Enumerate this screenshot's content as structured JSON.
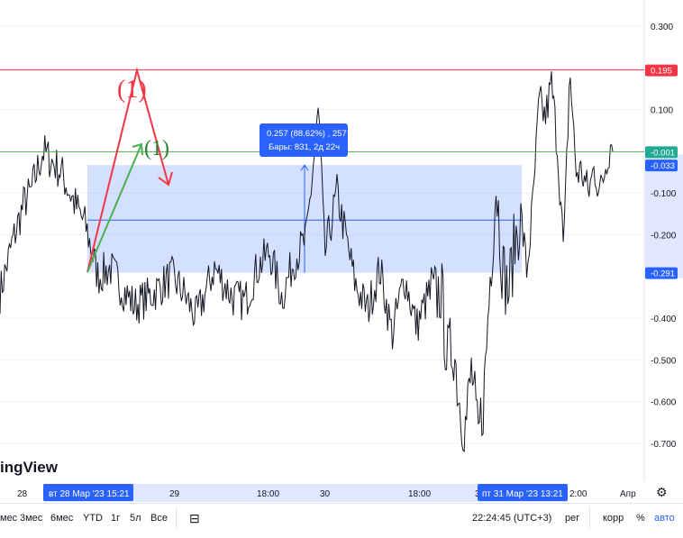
{
  "chart_data": {
    "type": "line",
    "y_axis": {
      "range": [
        -0.75,
        0.32
      ],
      "ticks": [
        0.3,
        0.1,
        -0.1,
        -0.2,
        -0.4,
        -0.5,
        -0.6,
        -0.7
      ],
      "tick_labels": [
        "0.300",
        "0.100",
        "-0.100",
        "-0.200",
        "-0.400",
        "-0.500",
        "-0.600",
        "-0.700"
      ]
    },
    "x_axis": {
      "tick_labels": [
        "28",
        "29",
        "18:00",
        "30",
        "18:00",
        "31",
        "2:00",
        "Апр"
      ],
      "highlight_labels": [
        "вт 28 Мар '23   15:21",
        "пт 31 Мар '23   13:21"
      ]
    },
    "price_markers": [
      {
        "value": 0.195,
        "label": "0.195",
        "color": "#f23645"
      },
      {
        "value": -0.001,
        "label": "-0.001",
        "color": "#22ab94"
      },
      {
        "value": -0.033,
        "label": "-0.033",
        "color": "#2962ff"
      },
      {
        "value": -0.291,
        "label": "-0.291",
        "color": "#2962ff"
      }
    ],
    "horizontal_lines": [
      {
        "value": 0.195,
        "color": "#f23645"
      },
      {
        "value": -0.001,
        "color": "#4caf50"
      }
    ],
    "measure_box": {
      "y_top": -0.033,
      "y_bottom": -0.291,
      "mid_value": -0.165,
      "label_line1": "0.257 (88.62%) , 257",
      "label_line2": "Бары: 831, 2д 22ч"
    },
    "annotations": {
      "wave_red": "(1)",
      "wave_green": "(1)"
    },
    "series": [
      {
        "x": [
          0,
          0.02,
          0.04,
          0.05,
          0.07,
          0.1,
          0.12,
          0.14,
          0.16,
          0.18,
          0.2,
          0.22,
          0.25,
          0.28,
          0.3,
          0.32,
          0.35,
          0.38,
          0.4,
          0.42,
          0.44,
          0.46,
          0.48,
          0.5,
          0.52,
          0.53,
          0.55,
          0.58,
          0.6,
          0.62,
          0.64,
          0.66,
          0.68,
          0.7,
          0.71,
          0.72,
          0.73,
          0.74,
          0.75,
          0.76,
          0.77,
          0.78,
          0.79,
          0.8,
          0.81,
          0.82,
          0.83,
          0.84,
          0.85,
          0.86,
          0.87,
          0.88,
          0.89,
          0.9,
          0.91,
          0.92,
          0.93,
          0.94,
          0.95,
          0.96,
          0.97,
          0.98,
          0.99,
          1.0
        ],
        "y": [
          -0.34,
          -0.22,
          -0.12,
          -0.1,
          0.0,
          -0.05,
          -0.12,
          -0.18,
          -0.3,
          -0.28,
          -0.33,
          -0.37,
          -0.34,
          -0.3,
          -0.34,
          -0.4,
          -0.28,
          -0.35,
          -0.36,
          -0.28,
          -0.24,
          -0.35,
          -0.26,
          -0.21,
          0.1,
          -0.25,
          -0.1,
          -0.32,
          -0.38,
          -0.28,
          -0.44,
          -0.3,
          -0.42,
          -0.34,
          -0.35,
          -0.33,
          -0.5,
          -0.46,
          -0.6,
          -0.66,
          -0.52,
          -0.7,
          -0.58,
          -0.3,
          -0.07,
          -0.28,
          -0.34,
          -0.22,
          -0.15,
          -0.29,
          -0.12,
          0.12,
          0.08,
          0.16,
          0.01,
          -0.25,
          0.2,
          -0.05,
          -0.05,
          -0.1,
          -0.04,
          -0.1,
          -0.02,
          0.04
        ]
      }
    ]
  },
  "watermark": "ingView",
  "bottom_bar": {
    "periods": [
      "мес",
      "3мес",
      "6мес",
      "YTD",
      "1г",
      "5л",
      "Все"
    ],
    "time": "22:24:45 (UTC+3)",
    "session": "рег",
    "percent": "%",
    "log_label": "корр",
    "auto_label": "авто"
  }
}
